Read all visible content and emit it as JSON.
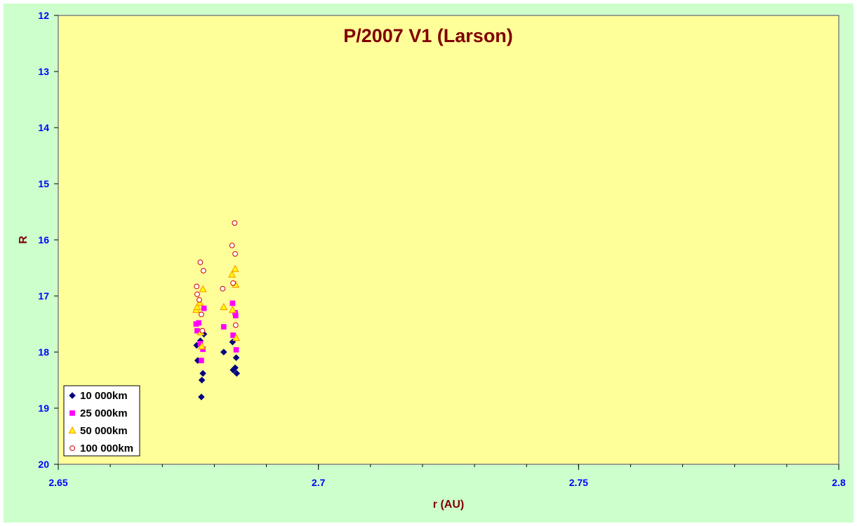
{
  "colors": {
    "outer_background": "#ccffcc",
    "plot_background": "#ffff99",
    "plot_border": "#808080",
    "title": "#800000",
    "axis_title": "#800000",
    "tick_label": "#0000ff"
  },
  "chart_data": {
    "type": "scatter",
    "title": "P/2007 V1 (Larson)",
    "xlabel": "r (AU)",
    "ylabel": "R",
    "xlim": [
      2.65,
      2.8
    ],
    "ylim": [
      12,
      20
    ],
    "y_inverted": true,
    "x_ticks": [
      2.65,
      2.7,
      2.75,
      2.8
    ],
    "x_tick_labels": [
      "2.65",
      "2.7",
      "2.75",
      "2.8"
    ],
    "x_minor_step": 0.01,
    "y_ticks": [
      12,
      13,
      14,
      15,
      16,
      17,
      18,
      19,
      20
    ],
    "y_tick_labels": [
      "12",
      "13",
      "14",
      "15",
      "16",
      "17",
      "18",
      "19",
      "20"
    ],
    "grid": false,
    "legend_position": "bottom-left",
    "series": [
      {
        "name": "10 000km",
        "marker": "diamond",
        "color": "#000080",
        "points": [
          [
            2.6766,
            17.88
          ],
          [
            2.6768,
            18.15
          ],
          [
            2.6773,
            17.8
          ],
          [
            2.6775,
            18.8
          ],
          [
            2.6776,
            18.5
          ],
          [
            2.6778,
            18.38
          ],
          [
            2.678,
            17.68
          ],
          [
            2.6818,
            18.0
          ],
          [
            2.6835,
            17.82
          ],
          [
            2.6836,
            18.32
          ],
          [
            2.6838,
            18.3
          ],
          [
            2.684,
            18.28
          ],
          [
            2.6842,
            18.1
          ],
          [
            2.6843,
            18.38
          ]
        ]
      },
      {
        "name": "25 000km",
        "marker": "square",
        "color": "#ff00ff",
        "points": [
          [
            2.6765,
            17.5
          ],
          [
            2.6767,
            17.62
          ],
          [
            2.677,
            17.48
          ],
          [
            2.6773,
            17.85
          ],
          [
            2.6775,
            18.15
          ],
          [
            2.6778,
            17.95
          ],
          [
            2.678,
            17.22
          ],
          [
            2.6818,
            17.55
          ],
          [
            2.6835,
            17.13
          ],
          [
            2.6836,
            17.7
          ],
          [
            2.684,
            17.3
          ],
          [
            2.6841,
            17.35
          ],
          [
            2.6842,
            17.96
          ]
        ]
      },
      {
        "name": "50 000km",
        "marker": "triangle",
        "color": "#ff9900",
        "fill": "#ffff00",
        "points": [
          [
            2.6765,
            17.25
          ],
          [
            2.6767,
            17.2
          ],
          [
            2.6772,
            17.12
          ],
          [
            2.6774,
            17.65
          ],
          [
            2.6776,
            17.9
          ],
          [
            2.6778,
            16.88
          ],
          [
            2.6818,
            17.2
          ],
          [
            2.6834,
            16.62
          ],
          [
            2.6835,
            17.25
          ],
          [
            2.684,
            16.52
          ],
          [
            2.6841,
            16.8
          ],
          [
            2.6842,
            17.75
          ]
        ]
      },
      {
        "name": "100 000km",
        "marker": "circle",
        "color": "#cc0000",
        "fill": "#ffffff",
        "points": [
          [
            2.6766,
            16.83
          ],
          [
            2.6767,
            16.97
          ],
          [
            2.6771,
            17.07
          ],
          [
            2.6773,
            16.4
          ],
          [
            2.6775,
            17.33
          ],
          [
            2.6777,
            17.62
          ],
          [
            2.6779,
            16.55
          ],
          [
            2.6816,
            16.87
          ],
          [
            2.6834,
            16.1
          ],
          [
            2.6836,
            16.77
          ],
          [
            2.6839,
            15.7
          ],
          [
            2.684,
            16.25
          ],
          [
            2.6841,
            17.52
          ]
        ]
      }
    ]
  }
}
